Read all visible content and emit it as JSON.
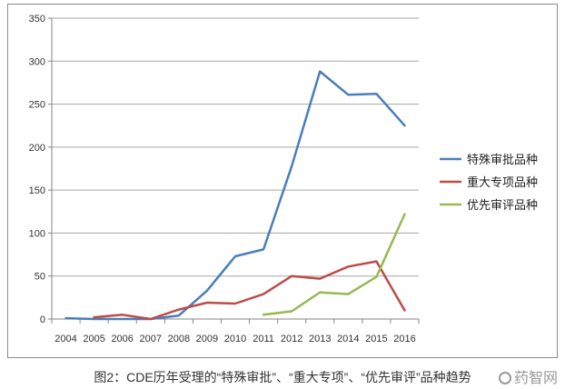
{
  "chart_data": {
    "type": "line",
    "title": "",
    "xlabel": "",
    "ylabel": "",
    "x": [
      "2004",
      "2005",
      "2006",
      "2007",
      "2008",
      "2009",
      "2010",
      "2011",
      "2012",
      "2013",
      "2014",
      "2015",
      "2016"
    ],
    "ylim": [
      0,
      350
    ],
    "yticks": [
      0,
      50,
      100,
      150,
      200,
      250,
      300,
      350
    ],
    "grid": "horizontal",
    "legend_position": "right",
    "series": [
      {
        "name": "特殊审批品种",
        "color": "#4a7ebb",
        "values": [
          1,
          0,
          0,
          0,
          4,
          33,
          73,
          81,
          178,
          288,
          261,
          262,
          225
        ]
      },
      {
        "name": "重大专项品种",
        "color": "#be4b48",
        "values": [
          null,
          2,
          5,
          0,
          11,
          19,
          18,
          29,
          50,
          47,
          61,
          67,
          10
        ]
      },
      {
        "name": "优先审评品种",
        "color": "#98b954",
        "values": [
          null,
          null,
          null,
          null,
          null,
          null,
          null,
          5,
          9,
          31,
          29,
          49,
          122
        ]
      }
    ]
  },
  "caption": "图2：CDE历年受理的“特殊审批”、“重大专项”、“优先审评”品种趋势",
  "watermark": "药智网"
}
